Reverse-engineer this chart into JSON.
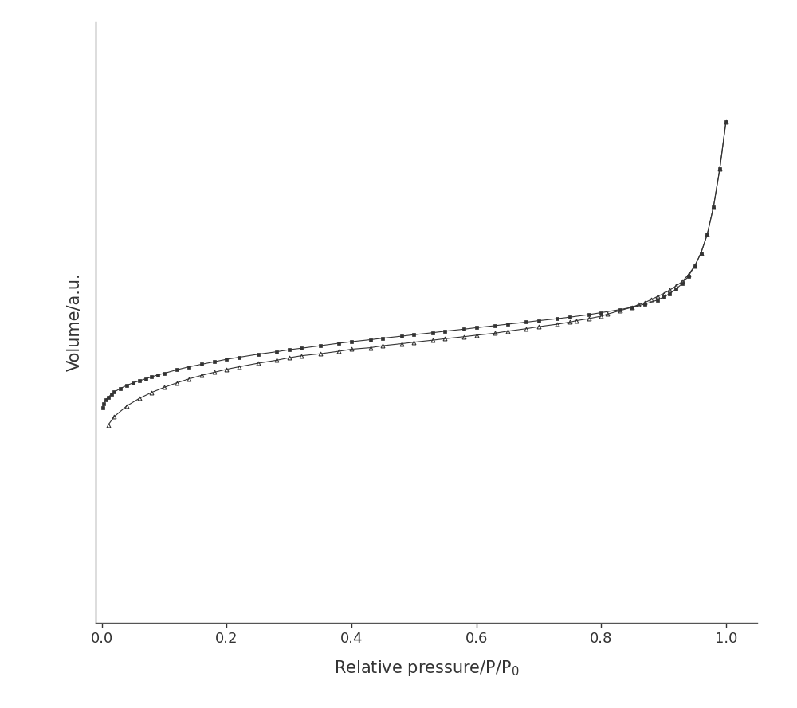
{
  "title": "",
  "xlabel": "Relative pressure/P/P$_0$",
  "ylabel": "Volume/a.u.",
  "xlim": [
    -0.01,
    1.05
  ],
  "background_color": "#ffffff",
  "line_color": "#333333",
  "adsorption_x": [
    0.001,
    0.003,
    0.006,
    0.01,
    0.015,
    0.02,
    0.03,
    0.04,
    0.05,
    0.06,
    0.07,
    0.08,
    0.09,
    0.1,
    0.12,
    0.14,
    0.16,
    0.18,
    0.2,
    0.22,
    0.25,
    0.28,
    0.3,
    0.32,
    0.35,
    0.38,
    0.4,
    0.43,
    0.45,
    0.48,
    0.5,
    0.53,
    0.55,
    0.58,
    0.6,
    0.63,
    0.65,
    0.68,
    0.7,
    0.73,
    0.75,
    0.78,
    0.8,
    0.83,
    0.85,
    0.87,
    0.89,
    0.9,
    0.91,
    0.92,
    0.93,
    0.94,
    0.95,
    0.96,
    0.97,
    0.98,
    0.99,
    1.0
  ],
  "adsorption_y": [
    0.43,
    0.438,
    0.445,
    0.45,
    0.456,
    0.461,
    0.468,
    0.474,
    0.479,
    0.483,
    0.487,
    0.491,
    0.495,
    0.498,
    0.505,
    0.511,
    0.516,
    0.521,
    0.526,
    0.53,
    0.536,
    0.541,
    0.545,
    0.548,
    0.553,
    0.558,
    0.561,
    0.565,
    0.568,
    0.572,
    0.575,
    0.579,
    0.582,
    0.586,
    0.589,
    0.593,
    0.596,
    0.6,
    0.603,
    0.607,
    0.61,
    0.615,
    0.619,
    0.625,
    0.63,
    0.636,
    0.644,
    0.65,
    0.657,
    0.666,
    0.677,
    0.692,
    0.712,
    0.738,
    0.775,
    0.83,
    0.905,
    1.0
  ],
  "desorption_x": [
    1.0,
    0.99,
    0.98,
    0.97,
    0.96,
    0.95,
    0.94,
    0.93,
    0.92,
    0.91,
    0.9,
    0.89,
    0.88,
    0.87,
    0.86,
    0.85,
    0.83,
    0.81,
    0.8,
    0.78,
    0.76,
    0.75,
    0.73,
    0.7,
    0.68,
    0.65,
    0.63,
    0.6,
    0.58,
    0.55,
    0.53,
    0.5,
    0.48,
    0.45,
    0.43,
    0.4,
    0.38,
    0.35,
    0.32,
    0.3,
    0.28,
    0.25,
    0.22,
    0.2,
    0.18,
    0.16,
    0.14,
    0.12,
    0.1,
    0.08,
    0.06,
    0.04,
    0.02,
    0.01
  ],
  "desorption_y": [
    1.0,
    0.905,
    0.83,
    0.775,
    0.738,
    0.712,
    0.695,
    0.681,
    0.672,
    0.664,
    0.657,
    0.651,
    0.645,
    0.639,
    0.635,
    0.63,
    0.623,
    0.616,
    0.612,
    0.607,
    0.603,
    0.6,
    0.596,
    0.591,
    0.587,
    0.582,
    0.578,
    0.574,
    0.571,
    0.567,
    0.564,
    0.56,
    0.557,
    0.553,
    0.549,
    0.546,
    0.542,
    0.537,
    0.533,
    0.529,
    0.524,
    0.518,
    0.511,
    0.506,
    0.5,
    0.494,
    0.487,
    0.479,
    0.47,
    0.46,
    0.448,
    0.433,
    0.412,
    0.395
  ],
  "xticks": [
    0.0,
    0.2,
    0.4,
    0.6,
    0.8,
    1.0
  ],
  "adsorption_marker": "s",
  "desorption_marker": "^",
  "adsorption_markersize": 3.5,
  "desorption_markersize": 3.5,
  "linewidth": 0.8
}
